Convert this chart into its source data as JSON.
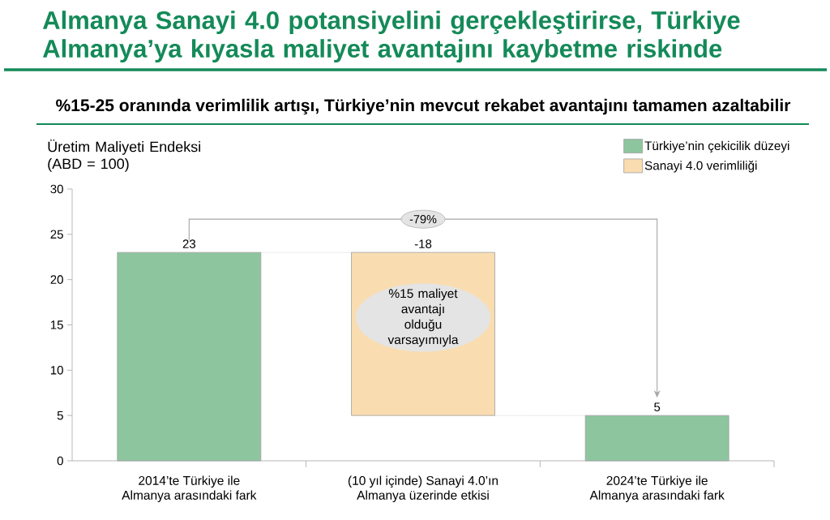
{
  "chart_data": {
    "type": "bar",
    "title": "Almanya Sanayi 4.0 potansiyelini gerçekleştirirse, Türkiye Almanya’ya kıyasla maliyet avantajını kaybetme riskinde",
    "subtitle": "%15-25 oranında verimlilik artışı, Türkiye’nin mevcut rekabet avantajını tamamen azaltabilir",
    "ylabel": "Üretim Maliyeti Endeksi (ABD = 100)",
    "categories": [
      "2014’te Türkiye ile Almanya arasındaki fark",
      "(10 yıl içinde) Sanayi 4.0’ın Almanya üzerinde etkisi",
      "2024’te Türkiye ile Almanya arasındaki fark"
    ],
    "series": [
      {
        "name": "Türkiye’nin çekicilik düzeyi",
        "color": "#8dc59f",
        "values": [
          23,
          null,
          5
        ]
      },
      {
        "name": "Sanayi 4.0 verimliliği",
        "color": "#f9ddb1",
        "values": [
          null,
          -18,
          null
        ],
        "base": [
          null,
          23,
          null
        ]
      }
    ],
    "ylim": [
      0,
      30
    ],
    "yticks": [
      0,
      5,
      10,
      15,
      20,
      25,
      30
    ],
    "data_labels": true,
    "legend": "top right",
    "annotations": [
      "-79%",
      "%15 maliyet avantajı olduğu varsayımıyla"
    ]
  }
}
